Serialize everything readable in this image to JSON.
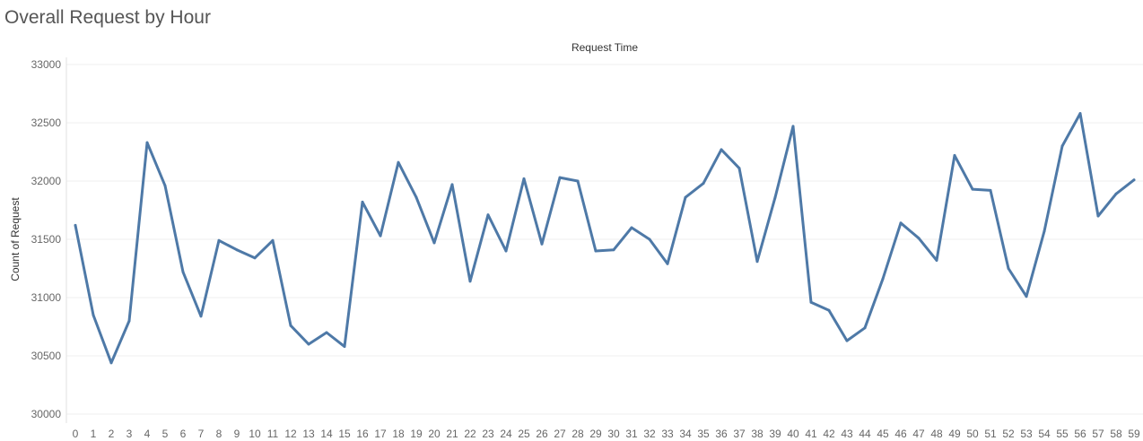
{
  "title": "Overall Request by Hour",
  "chart_data": {
    "type": "line",
    "title": "Overall Request by Hour",
    "header": "Request Time",
    "xlabel": "",
    "ylabel": "Count of Request",
    "ylim": [
      30000,
      33000
    ],
    "yticks": [
      30000,
      30500,
      31000,
      31500,
      32000,
      32500,
      33000
    ],
    "grid": true,
    "color": "#4e79a7",
    "x": [
      0,
      1,
      2,
      3,
      4,
      5,
      6,
      7,
      8,
      9,
      10,
      11,
      12,
      13,
      14,
      15,
      16,
      17,
      18,
      19,
      20,
      21,
      22,
      23,
      24,
      25,
      26,
      27,
      28,
      29,
      30,
      31,
      32,
      33,
      34,
      35,
      36,
      37,
      38,
      39,
      40,
      41,
      42,
      43,
      44,
      45,
      46,
      47,
      48,
      49,
      50,
      51,
      52,
      53,
      54,
      55,
      56,
      57,
      58,
      59
    ],
    "values": [
      31620,
      30850,
      30440,
      30800,
      32330,
      31960,
      31220,
      30840,
      31490,
      31410,
      31340,
      31490,
      30760,
      30600,
      30700,
      30580,
      31820,
      31530,
      32160,
      31860,
      31470,
      31970,
      31140,
      31710,
      31400,
      32020,
      31460,
      32030,
      32000,
      31400,
      31410,
      31600,
      31500,
      31290,
      31860,
      31980,
      32270,
      32110,
      31310,
      31860,
      32470,
      30960,
      30890,
      30630,
      30740,
      31160,
      31640,
      31510,
      31320,
      32220,
      31930,
      31920,
      31250,
      31010,
      31570,
      32300,
      32580,
      31700,
      31890,
      32010
    ]
  }
}
